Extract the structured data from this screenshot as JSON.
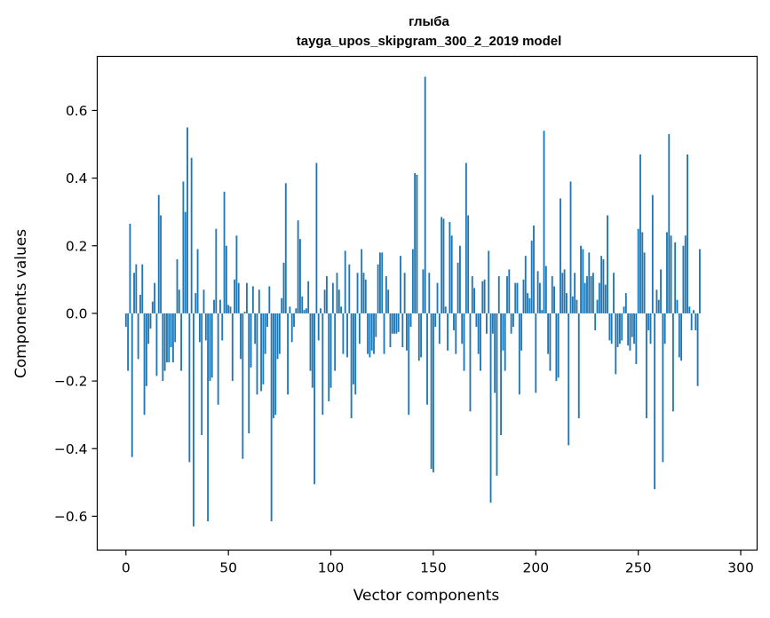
{
  "chart_data": {
    "type": "bar",
    "title": "глыба",
    "subtitle": "tayga_upos_skipgram_300_2_2019 model",
    "xlabel": "Vector components",
    "ylabel": "Components values",
    "xlim": [
      -14,
      308
    ],
    "ylim": [
      -0.7,
      0.76
    ],
    "xticks": [
      0,
      50,
      100,
      150,
      200,
      250,
      300
    ],
    "xtick_labels": [
      "0",
      "50",
      "100",
      "150",
      "200",
      "250",
      "300"
    ],
    "yticks": [
      -0.6,
      -0.4,
      -0.2,
      0.0,
      0.2,
      0.4,
      0.6
    ],
    "ytick_labels": [
      "−0.6",
      "−0.4",
      "−0.2",
      "0.0",
      "0.2",
      "0.4",
      "0.6"
    ],
    "bar_color": "#1f77b4",
    "values": [
      -0.04,
      -0.17,
      0.265,
      -0.425,
      0.12,
      0.145,
      -0.135,
      0.055,
      0.145,
      -0.3,
      -0.215,
      -0.09,
      -0.045,
      0.035,
      0.09,
      -0.185,
      0.35,
      0.29,
      -0.2,
      -0.17,
      -0.145,
      -0.145,
      -0.1,
      -0.145,
      -0.085,
      0.16,
      0.07,
      -0.17,
      0.39,
      0.3,
      0.55,
      -0.44,
      0.46,
      -0.63,
      0.06,
      0.19,
      -0.085,
      -0.36,
      0.07,
      -0.08,
      -0.615,
      -0.2,
      -0.19,
      0.04,
      0.25,
      -0.27,
      0.04,
      -0.08,
      0.36,
      0.2,
      0.025,
      0.02,
      -0.2,
      0.1,
      0.23,
      0.09,
      -0.135,
      -0.43,
      0.005,
      0.09,
      -0.355,
      -0.16,
      0.08,
      -0.09,
      -0.24,
      0.07,
      -0.23,
      -0.21,
      -0.12,
      -0.04,
      0.08,
      -0.615,
      -0.31,
      -0.3,
      -0.135,
      -0.12,
      0.045,
      0.15,
      0.385,
      -0.24,
      0.02,
      -0.085,
      -0.04,
      0.015,
      0.275,
      0.22,
      0.05,
      0.01,
      0.015,
      0.095,
      -0.17,
      -0.22,
      -0.505,
      0.445,
      -0.08,
      0.015,
      -0.3,
      0.07,
      0.11,
      -0.26,
      -0.22,
      0.09,
      -0.17,
      0.12,
      0.07,
      0.02,
      -0.12,
      0.185,
      -0.13,
      0.145,
      -0.31,
      -0.21,
      -0.24,
      0.12,
      -0.09,
      0.19,
      0.12,
      0.1,
      -0.12,
      -0.13,
      -0.11,
      -0.12,
      -0.07,
      0.145,
      0.18,
      0.18,
      -0.12,
      0.11,
      0.07,
      -0.1,
      -0.06,
      -0.06,
      -0.06,
      -0.055,
      0.17,
      -0.1,
      0.12,
      -0.11,
      -0.3,
      -0.04,
      0.19,
      0.415,
      0.41,
      -0.14,
      -0.13,
      0.13,
      0.7,
      -0.27,
      0.12,
      -0.46,
      -0.47,
      -0.04,
      0.09,
      -0.09,
      0.285,
      0.28,
      0.02,
      -0.11,
      0.27,
      0.23,
      -0.05,
      -0.12,
      0.15,
      0.2,
      -0.09,
      -0.17,
      0.445,
      0.29,
      -0.29,
      0.11,
      0.075,
      -0.04,
      -0.12,
      -0.17,
      0.095,
      0.1,
      -0.06,
      0.185,
      -0.56,
      -0.06,
      -0.235,
      -0.48,
      0.11,
      -0.36,
      -0.11,
      -0.17,
      0.11,
      0.13,
      -0.06,
      -0.04,
      0.09,
      0.09,
      -0.24,
      -0.11,
      0.1,
      0.17,
      0.06,
      0.045,
      0.215,
      0.26,
      -0.235,
      0.125,
      0.09,
      0.01,
      0.54,
      0.14,
      -0.12,
      -0.17,
      0.11,
      0.08,
      -0.2,
      -0.19,
      0.34,
      0.12,
      0.13,
      0.06,
      -0.39,
      0.39,
      0.05,
      0.12,
      0.04,
      -0.31,
      0.2,
      0.19,
      0.09,
      0.11,
      0.18,
      0.11,
      0.12,
      -0.05,
      0.04,
      0.09,
      0.17,
      0.16,
      0.085,
      0.29,
      -0.08,
      -0.09,
      0.12,
      -0.18,
      -0.1,
      -0.09,
      -0.08,
      0.02,
      0.06,
      -0.095,
      -0.11,
      -0.07,
      -0.09,
      -0.15,
      0.25,
      0.47,
      0.24,
      0.18,
      -0.31,
      -0.05,
      -0.09,
      0.35,
      -0.52,
      0.07,
      0.04,
      0.13,
      -0.44,
      -0.09,
      0.24,
      0.53,
      0.23,
      -0.29,
      0.21,
      0.04,
      -0.13,
      -0.14,
      0.2,
      0.23,
      0.47,
      0.02,
      -0.05,
      0.01,
      -0.05,
      -0.215,
      0.19
    ]
  }
}
